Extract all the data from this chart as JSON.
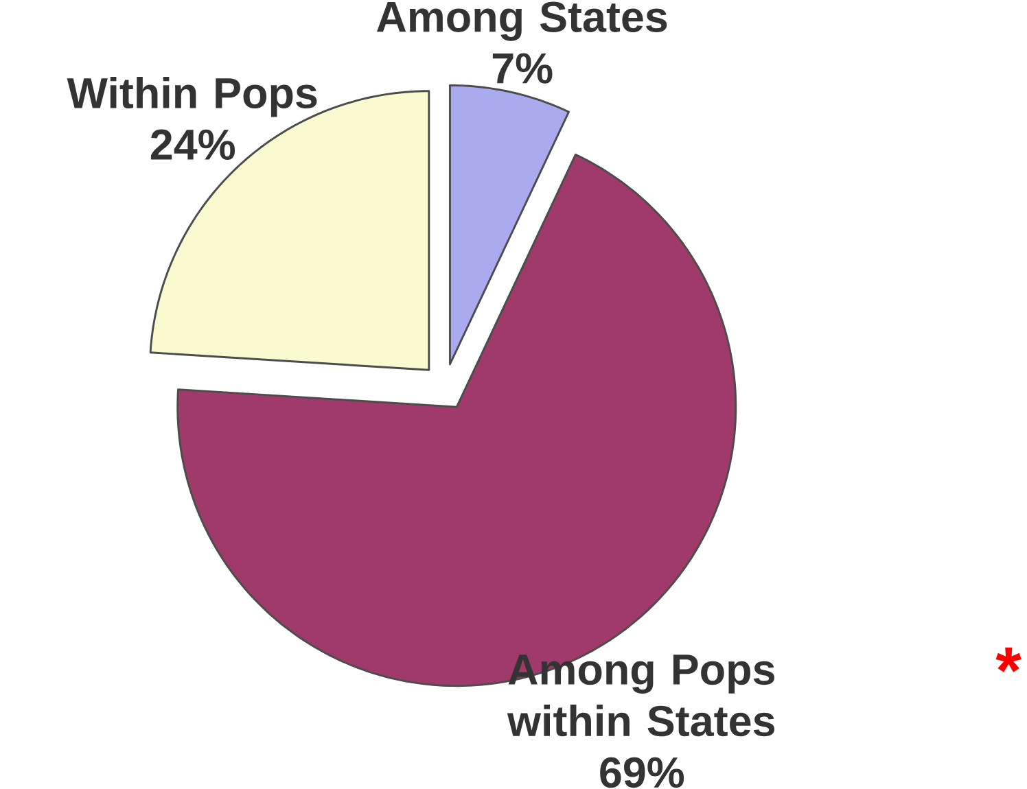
{
  "chart_data": {
    "type": "pie",
    "categories": [
      "Among States",
      "Among Pops within States",
      "Within Pops"
    ],
    "values": [
      7,
      69,
      24
    ],
    "value_labels": [
      "7%",
      "69%",
      "24%"
    ],
    "colors": [
      "#aaaaee",
      "#a03a6a",
      "#fafad0"
    ],
    "annotations": [
      "*"
    ]
  }
}
